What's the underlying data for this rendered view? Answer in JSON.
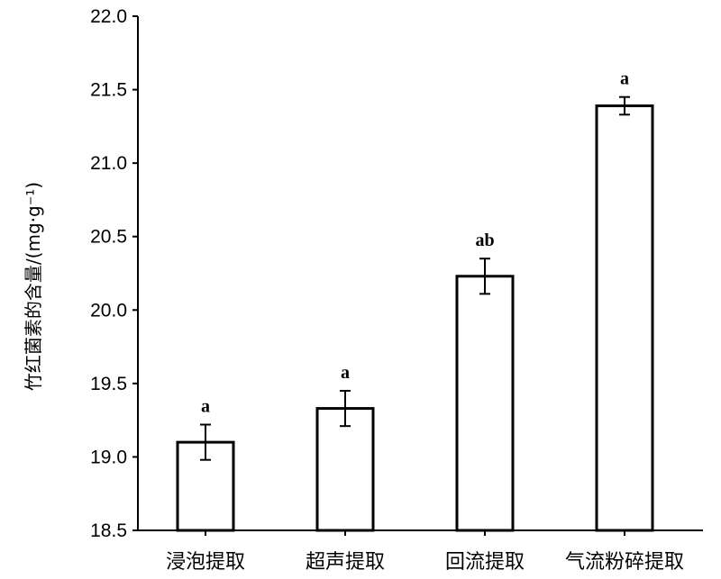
{
  "chart_data": {
    "type": "bar",
    "categories": [
      "浸泡提取",
      "超声提取",
      "回流提取",
      "气流粉碎提取"
    ],
    "series": [
      {
        "values": [
          19.1,
          19.33,
          20.23,
          21.39
        ],
        "errors": [
          0.12,
          0.12,
          0.12,
          0.06
        ],
        "significance": [
          "a",
          "a",
          "ab",
          "a"
        ]
      }
    ],
    "ylabel": "竹红菌素的含量/(mg·g⁻¹)",
    "xlabel": "",
    "title": "",
    "ylim": [
      18.5,
      22.0
    ],
    "yticks": [
      "18.5",
      "19.0",
      "19.5",
      "20.0",
      "20.5",
      "21.0",
      "21.5",
      "22.0"
    ],
    "grid": false,
    "legend": "none"
  }
}
